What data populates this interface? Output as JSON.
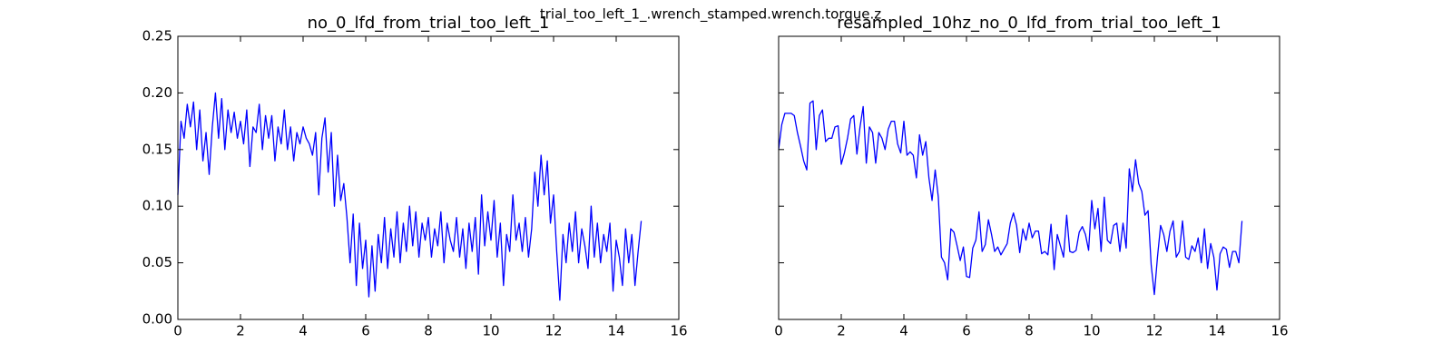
{
  "title": "trial_too_left_1_.wrench_stamped.wrench.torque.z",
  "chart_data": [
    {
      "type": "line",
      "title": "no_0_lfd_from_trial_too_left_1",
      "x": [
        0,
        0.1,
        0.2,
        0.3,
        0.4,
        0.5,
        0.6,
        0.7,
        0.8,
        0.9,
        1,
        1.1,
        1.2,
        1.3,
        1.4,
        1.5,
        1.6,
        1.7,
        1.8,
        1.9,
        2,
        2.1,
        2.2,
        2.3,
        2.4,
        2.5,
        2.6,
        2.7,
        2.8,
        2.9,
        3,
        3.1,
        3.2,
        3.3,
        3.4,
        3.5,
        3.6,
        3.7,
        3.8,
        3.9,
        4,
        4.1,
        4.2,
        4.3,
        4.4,
        4.5,
        4.6,
        4.7,
        4.8,
        4.9,
        5,
        5.1,
        5.2,
        5.3,
        5.4,
        5.5,
        5.6,
        5.7,
        5.8,
        5.9,
        6,
        6.1,
        6.2,
        6.3,
        6.4,
        6.5,
        6.6,
        6.7,
        6.8,
        6.9,
        7,
        7.1,
        7.2,
        7.3,
        7.4,
        7.5,
        7.6,
        7.7,
        7.8,
        7.9,
        8,
        8.1,
        8.2,
        8.3,
        8.4,
        8.5,
        8.6,
        8.7,
        8.8,
        8.9,
        9,
        9.1,
        9.2,
        9.3,
        9.4,
        9.5,
        9.6,
        9.7,
        9.8,
        9.9,
        10,
        10.1,
        10.2,
        10.3,
        10.4,
        10.5,
        10.6,
        10.7,
        10.8,
        10.9,
        11,
        11.1,
        11.2,
        11.3,
        11.4,
        11.5,
        11.6,
        11.7,
        11.8,
        11.9,
        12,
        12.1,
        12.2,
        12.3,
        12.4,
        12.5,
        12.6,
        12.7,
        12.8,
        12.9,
        13,
        13.1,
        13.2,
        13.3,
        13.4,
        13.5,
        13.6,
        13.7,
        13.8,
        13.9,
        14,
        14.1,
        14.2,
        14.3,
        14.4,
        14.5,
        14.6,
        14.7,
        14.8
      ],
      "series": [
        {
          "color": "#0000ff",
          "values": [
            0.11,
            0.175,
            0.16,
            0.19,
            0.17,
            0.192,
            0.15,
            0.185,
            0.14,
            0.165,
            0.128,
            0.17,
            0.2,
            0.16,
            0.195,
            0.15,
            0.185,
            0.165,
            0.183,
            0.16,
            0.175,
            0.155,
            0.185,
            0.135,
            0.17,
            0.165,
            0.19,
            0.15,
            0.18,
            0.16,
            0.18,
            0.14,
            0.17,
            0.155,
            0.185,
            0.15,
            0.17,
            0.14,
            0.165,
            0.155,
            0.17,
            0.16,
            0.155,
            0.145,
            0.165,
            0.11,
            0.16,
            0.178,
            0.13,
            0.165,
            0.1,
            0.145,
            0.105,
            0.12,
            0.09,
            0.05,
            0.093,
            0.03,
            0.085,
            0.045,
            0.07,
            0.02,
            0.065,
            0.025,
            0.075,
            0.05,
            0.09,
            0.045,
            0.08,
            0.055,
            0.095,
            0.05,
            0.085,
            0.06,
            0.1,
            0.065,
            0.095,
            0.055,
            0.085,
            0.07,
            0.09,
            0.055,
            0.08,
            0.065,
            0.095,
            0.05,
            0.085,
            0.07,
            0.06,
            0.09,
            0.055,
            0.08,
            0.045,
            0.085,
            0.06,
            0.09,
            0.04,
            0.11,
            0.065,
            0.095,
            0.07,
            0.105,
            0.055,
            0.085,
            0.03,
            0.075,
            0.06,
            0.11,
            0.07,
            0.085,
            0.06,
            0.09,
            0.055,
            0.08,
            0.13,
            0.1,
            0.145,
            0.11,
            0.14,
            0.085,
            0.11,
            0.06,
            0.017,
            0.075,
            0.05,
            0.085,
            0.06,
            0.095,
            0.05,
            0.08,
            0.065,
            0.045,
            0.1,
            0.055,
            0.085,
            0.05,
            0.075,
            0.06,
            0.085,
            0.025,
            0.07,
            0.055,
            0.03,
            0.08,
            0.05,
            0.075,
            0.03,
            0.06,
            0.087
          ]
        }
      ],
      "xlim": [
        0,
        16
      ],
      "xticks": [
        0,
        2,
        4,
        6,
        8,
        10,
        12,
        14,
        16
      ],
      "ylim": [
        0,
        0.25
      ],
      "yticks": [
        {
          "value": 0,
          "label": "0.00"
        },
        {
          "value": 0.05,
          "label": "0.05"
        },
        {
          "value": 0.1,
          "label": "0.10"
        },
        {
          "value": 0.15,
          "label": "0.15"
        },
        {
          "value": 0.2,
          "label": "0.20"
        },
        {
          "value": 0.25,
          "label": "0.25"
        }
      ],
      "show_ytick_labels": true
    },
    {
      "type": "line",
      "title": "resampled_10hz_no_0_lfd_from_trial_too_left_1",
      "x": [
        0,
        0.1,
        0.2,
        0.3,
        0.4,
        0.5,
        0.6,
        0.7,
        0.8,
        0.9,
        1,
        1.1,
        1.2,
        1.3,
        1.4,
        1.5,
        1.6,
        1.7,
        1.8,
        1.9,
        2,
        2.1,
        2.2,
        2.3,
        2.4,
        2.5,
        2.6,
        2.7,
        2.8,
        2.9,
        3,
        3.1,
        3.2,
        3.3,
        3.4,
        3.5,
        3.6,
        3.7,
        3.8,
        3.9,
        4,
        4.1,
        4.2,
        4.3,
        4.4,
        4.5,
        4.6,
        4.7,
        4.8,
        4.9,
        5,
        5.1,
        5.2,
        5.3,
        5.4,
        5.5,
        5.6,
        5.7,
        5.8,
        5.9,
        6,
        6.1,
        6.2,
        6.3,
        6.4,
        6.5,
        6.6,
        6.7,
        6.8,
        6.9,
        7,
        7.1,
        7.2,
        7.3,
        7.4,
        7.5,
        7.6,
        7.7,
        7.8,
        7.9,
        8,
        8.1,
        8.2,
        8.3,
        8.4,
        8.5,
        8.6,
        8.7,
        8.8,
        8.9,
        9,
        9.1,
        9.2,
        9.3,
        9.4,
        9.5,
        9.6,
        9.7,
        9.8,
        9.9,
        10,
        10.1,
        10.2,
        10.3,
        10.4,
        10.5,
        10.6,
        10.7,
        10.8,
        10.9,
        11,
        11.1,
        11.2,
        11.3,
        11.4,
        11.5,
        11.6,
        11.7,
        11.8,
        11.9,
        12,
        12.1,
        12.2,
        12.3,
        12.4,
        12.5,
        12.6,
        12.7,
        12.8,
        12.9,
        13,
        13.1,
        13.2,
        13.3,
        13.4,
        13.5,
        13.6,
        13.7,
        13.8,
        13.9,
        14,
        14.1,
        14.2,
        14.3,
        14.4,
        14.5,
        14.6,
        14.7,
        14.8
      ],
      "series": [
        {
          "color": "#0000ff",
          "values": [
            0.15,
            0.172,
            0.182,
            0.182,
            0.182,
            0.18,
            0.165,
            0.153,
            0.14,
            0.132,
            0.191,
            0.193,
            0.15,
            0.18,
            0.185,
            0.157,
            0.16,
            0.16,
            0.17,
            0.171,
            0.137,
            0.147,
            0.16,
            0.177,
            0.18,
            0.146,
            0.17,
            0.188,
            0.138,
            0.17,
            0.165,
            0.138,
            0.165,
            0.16,
            0.15,
            0.168,
            0.175,
            0.175,
            0.155,
            0.147,
            0.175,
            0.145,
            0.148,
            0.145,
            0.125,
            0.163,
            0.145,
            0.157,
            0.125,
            0.105,
            0.132,
            0.108,
            0.055,
            0.05,
            0.035,
            0.08,
            0.077,
            0.065,
            0.052,
            0.064,
            0.038,
            0.037,
            0.063,
            0.07,
            0.095,
            0.06,
            0.066,
            0.088,
            0.075,
            0.06,
            0.064,
            0.057,
            0.062,
            0.067,
            0.085,
            0.094,
            0.083,
            0.059,
            0.08,
            0.07,
            0.085,
            0.072,
            0.078,
            0.078,
            0.058,
            0.06,
            0.057,
            0.084,
            0.044,
            0.075,
            0.065,
            0.055,
            0.092,
            0.06,
            0.059,
            0.061,
            0.077,
            0.082,
            0.075,
            0.061,
            0.105,
            0.08,
            0.098,
            0.06,
            0.108,
            0.07,
            0.067,
            0.083,
            0.085,
            0.06,
            0.085,
            0.063,
            0.133,
            0.113,
            0.141,
            0.12,
            0.113,
            0.092,
            0.096,
            0.048,
            0.022,
            0.055,
            0.083,
            0.075,
            0.06,
            0.078,
            0.087,
            0.055,
            0.06,
            0.087,
            0.055,
            0.053,
            0.065,
            0.06,
            0.072,
            0.05,
            0.08,
            0.045,
            0.067,
            0.055,
            0.026,
            0.058,
            0.064,
            0.062,
            0.046,
            0.06,
            0.06,
            0.05,
            0.087
          ]
        }
      ],
      "xlim": [
        0,
        16
      ],
      "xticks": [
        0,
        2,
        4,
        6,
        8,
        10,
        12,
        14,
        16
      ],
      "ylim": [
        0,
        0.25
      ],
      "yticks": [
        0,
        0.05,
        0.1,
        0.15,
        0.2,
        0.25
      ],
      "show_ytick_labels": false
    }
  ]
}
